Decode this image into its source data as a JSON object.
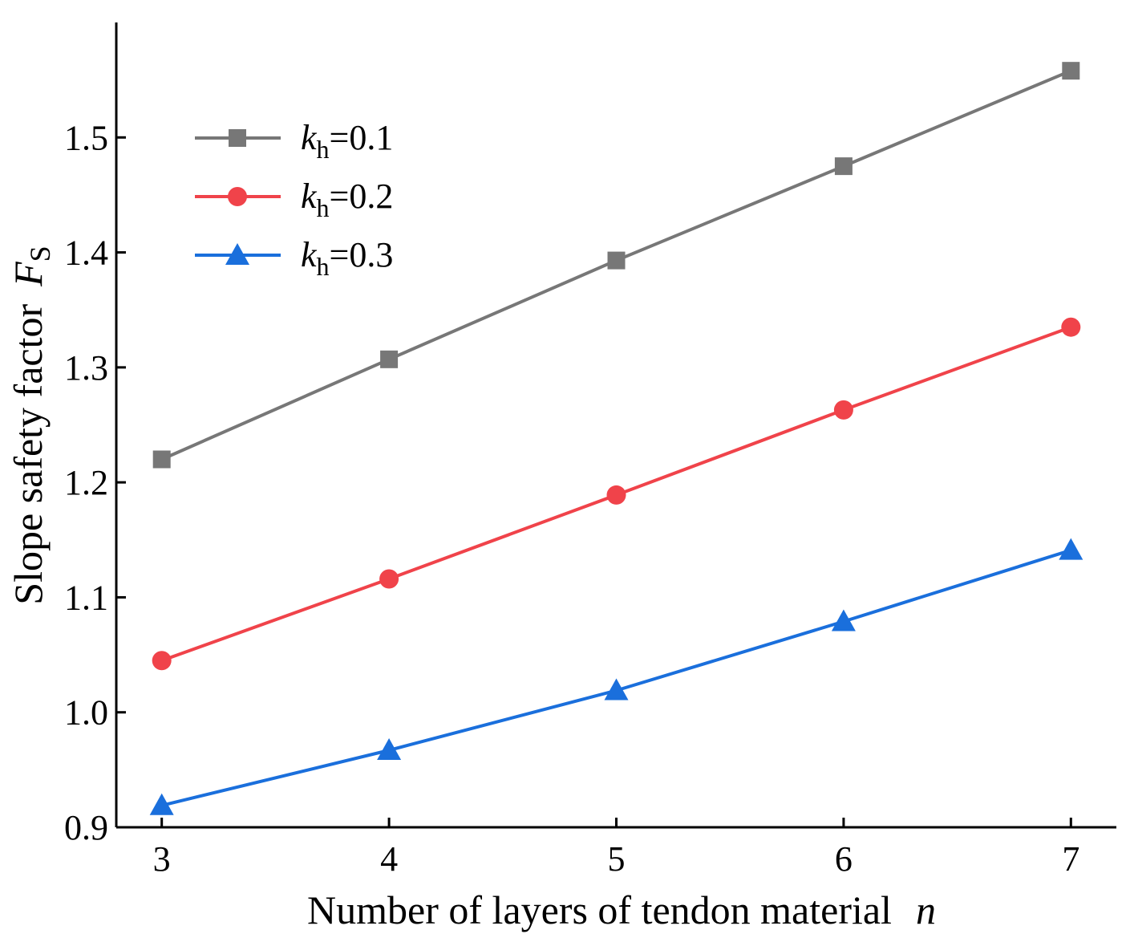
{
  "chart_data": {
    "type": "line",
    "title": "",
    "xlabel": "Number of layers of tendon material",
    "xlabel_var": "n",
    "ylabel": "Slope safety factor",
    "ylabel_var": "F",
    "ylabel_sub": "S",
    "x": [
      3,
      4,
      5,
      6,
      7
    ],
    "xlim": [
      2.8,
      7.2
    ],
    "ylim": [
      0.9,
      1.6
    ],
    "xticks": [
      "3",
      "4",
      "5",
      "6",
      "7"
    ],
    "yticks": [
      "0.9",
      "1.0",
      "1.1",
      "1.2",
      "1.3",
      "1.4",
      "1.5"
    ],
    "grid": false,
    "legend_position": "top-left",
    "series": [
      {
        "name": "kh=0.1",
        "label_k": "k",
        "label_sub": "h",
        "label_val": "=0.1",
        "marker": "square",
        "color": "#777777",
        "values": [
          1.22,
          1.307,
          1.393,
          1.475,
          1.558
        ]
      },
      {
        "name": "kh=0.2",
        "label_k": "k",
        "label_sub": "h",
        "label_val": "=0.2",
        "marker": "circle",
        "color": "#f0434a",
        "values": [
          1.045,
          1.116,
          1.189,
          1.263,
          1.335
        ]
      },
      {
        "name": "kh=0.3",
        "label_k": "k",
        "label_sub": "h",
        "label_val": "=0.3",
        "marker": "triangle",
        "color": "#1a6fdc",
        "values": [
          0.919,
          0.967,
          1.019,
          1.079,
          1.141
        ]
      }
    ]
  }
}
